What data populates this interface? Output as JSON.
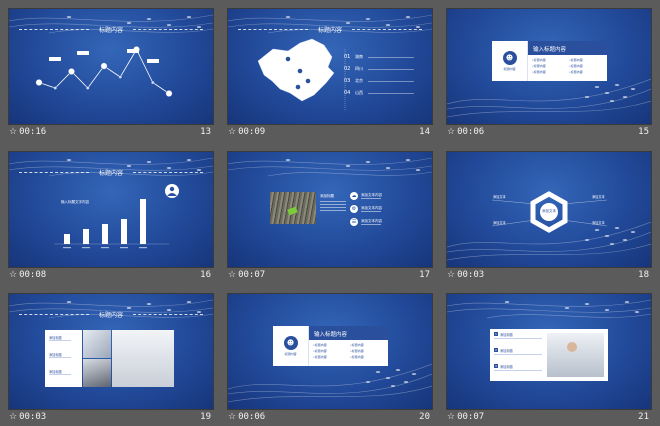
{
  "slides": [
    {
      "time": "00:16",
      "number": "13",
      "title": "标题内容",
      "kind": "line-chart"
    },
    {
      "time": "00:09",
      "number": "14",
      "title": "标题内容",
      "kind": "map",
      "list": [
        {
          "num": "01",
          "label": "湖南"
        },
        {
          "num": "02",
          "label": "四川"
        },
        {
          "num": "03",
          "label": "北京"
        },
        {
          "num": "04",
          "label": "山西"
        }
      ]
    },
    {
      "time": "00:06",
      "number": "15",
      "title": "",
      "kind": "card",
      "card_title": "输入标题内容",
      "card_sub": "标题内容",
      "card_items": [
        "标题内容",
        "标题内容",
        "标题内容",
        "标题内容",
        "标题内容",
        "标题内容"
      ]
    },
    {
      "time": "00:08",
      "number": "16",
      "title": "标题内容",
      "kind": "bar-chart",
      "chart_label": "输入标题文字内容"
    },
    {
      "time": "00:07",
      "number": "17",
      "title": "",
      "kind": "photo-list",
      "main_label": "添加标题",
      "items": [
        "添加文本内容",
        "添加文本内容",
        "添加文本内容"
      ]
    },
    {
      "time": "00:03",
      "number": "18",
      "title": "",
      "kind": "hexagon",
      "center": "添加文本",
      "labels": [
        "添加文本",
        "添加文本",
        "添加文本",
        "添加文本"
      ]
    },
    {
      "time": "00:03",
      "number": "19",
      "title": "标题内容",
      "kind": "photo-grid",
      "items": [
        "添加标题",
        "添加标题",
        "添加标题"
      ]
    },
    {
      "time": "00:06",
      "number": "20",
      "title": "",
      "kind": "card",
      "card_title": "输入标题内容",
      "card_sub": "标题内容",
      "card_items": [
        "标题内容",
        "标题内容",
        "标题内容",
        "标题内容",
        "标题内容",
        "标题内容"
      ]
    },
    {
      "time": "00:07",
      "number": "21",
      "title": "",
      "kind": "photo-list2",
      "items": [
        "添加标题",
        "添加标题",
        "添加标题"
      ]
    }
  ],
  "chart_data": [
    {
      "type": "line",
      "title": "",
      "x": [
        1,
        2,
        3,
        4,
        5,
        6,
        7,
        8,
        9
      ],
      "values": [
        3,
        2,
        5,
        2,
        6,
        4,
        9,
        3,
        1
      ],
      "labels": [
        "",
        "",
        "",
        "",
        "",
        "",
        "",
        "",
        ""
      ]
    },
    {
      "type": "bar",
      "title": "输入标题文字内容",
      "categories": [
        "",
        "",
        "",
        "",
        ""
      ],
      "values": [
        2,
        3,
        4,
        5,
        9
      ]
    }
  ],
  "colors": {
    "bg": "#5b5b5b",
    "slide": "#224a9a",
    "accent": "#ffffff"
  }
}
